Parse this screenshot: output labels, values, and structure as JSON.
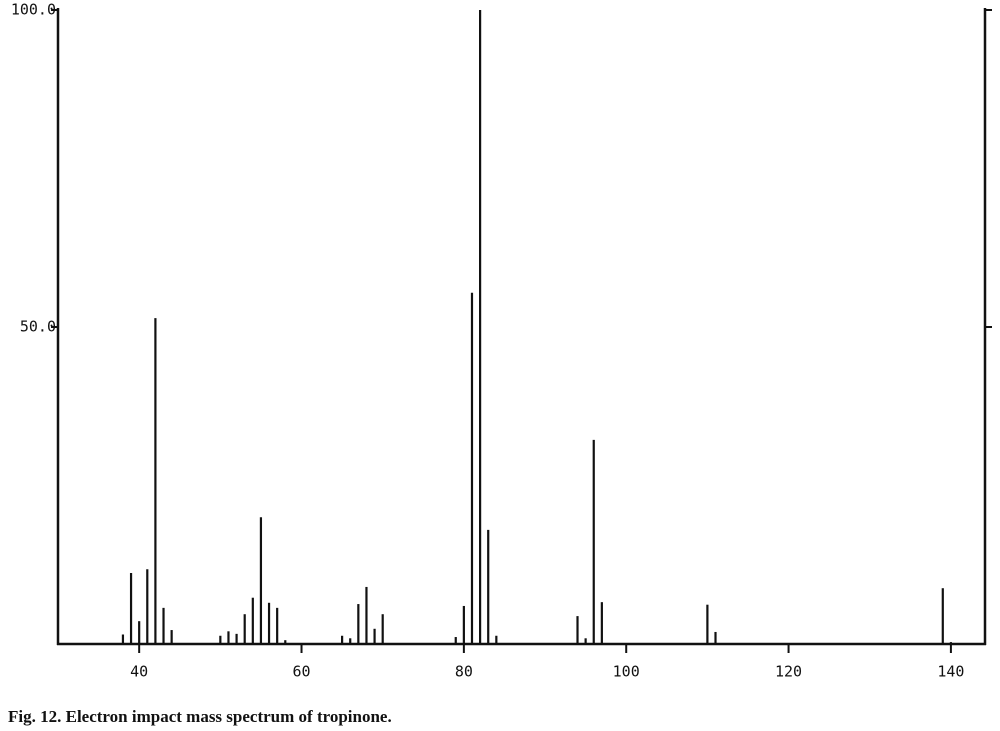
{
  "chart_data": {
    "type": "bar",
    "caption": "Fig. 12. Electron impact mass spectrum of tropinone.",
    "x": [
      38,
      39,
      40,
      41,
      42,
      43,
      44,
      50,
      51,
      52,
      53,
      54,
      55,
      56,
      57,
      58,
      65,
      66,
      67,
      68,
      69,
      70,
      79,
      80,
      81,
      82,
      83,
      84,
      94,
      95,
      96,
      97,
      110,
      111,
      139,
      140
    ],
    "values": [
      1.5,
      11.2,
      3.6,
      11.8,
      51.4,
      5.7,
      2.2,
      1.3,
      2,
      1.6,
      4.7,
      7.3,
      20,
      6.5,
      5.7,
      0.6,
      1.3,
      0.9,
      6.3,
      9,
      2.4,
      4.7,
      1.1,
      6,
      55.4,
      100,
      18,
      1.3,
      4.4,
      0.9,
      32.2,
      6.6,
      6.2,
      1.9,
      8.8,
      0.3
    ],
    "color": "#111111",
    "xlim": [
      30,
      144.2
    ],
    "ylim": [
      0,
      100
    ],
    "xticks": [
      40,
      60,
      80,
      100,
      120,
      140
    ],
    "yticks": [
      {
        "value": 50,
        "label": "50.0"
      },
      {
        "value": 100,
        "label": "100.0"
      }
    ]
  }
}
